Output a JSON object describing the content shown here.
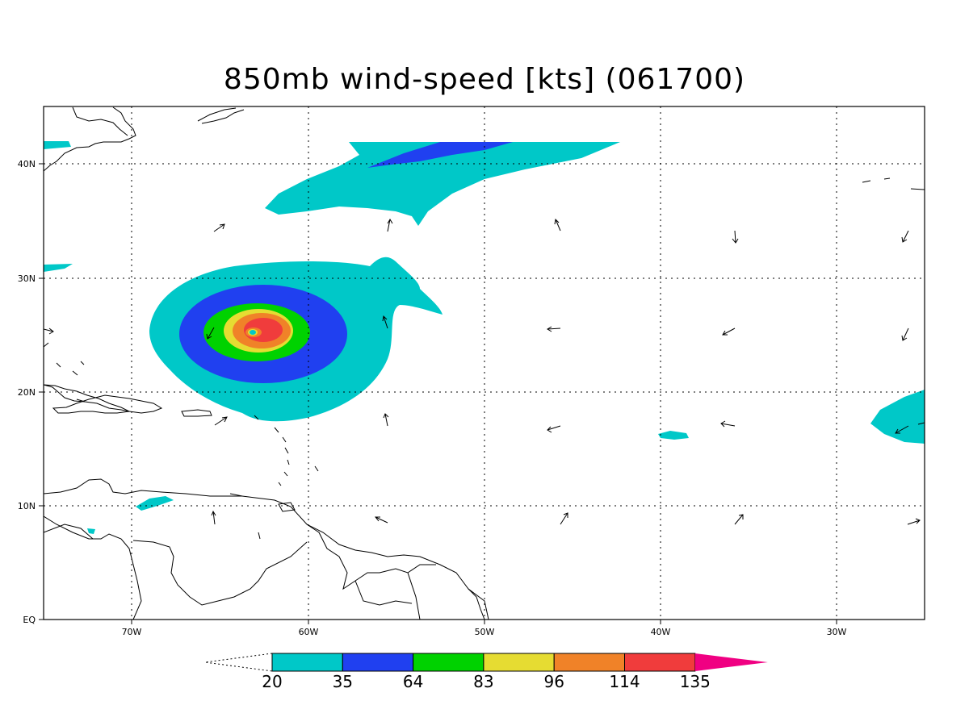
{
  "title": "850mb wind-speed [kts] (061700)",
  "axes": {
    "x_ticks": [
      "70W",
      "60W",
      "50W",
      "40W",
      "30W"
    ],
    "y_ticks": [
      "EQ",
      "10N",
      "20N",
      "30N",
      "40N"
    ]
  },
  "colorbar": {
    "levels": [
      "20",
      "35",
      "64",
      "83",
      "96",
      "114",
      "135"
    ],
    "colors": [
      "#00c8c8",
      "#2040f0",
      "#00d200",
      "#e6dc32",
      "#f08228",
      "#f03c3c",
      "#f00082"
    ]
  },
  "colors": {
    "land_outline": "#000000",
    "grid": "#000000"
  }
}
